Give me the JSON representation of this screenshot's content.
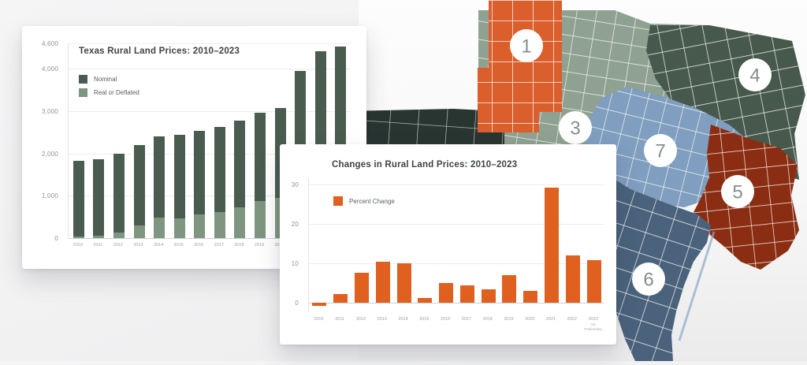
{
  "chart_data": [
    {
      "type": "bar",
      "title": "Texas Rural Land Prices: 2010–2023",
      "categories": [
        "2010",
        "2011",
        "2012",
        "2013",
        "2014",
        "2015",
        "2016",
        "2017",
        "2018",
        "2019",
        "2020",
        "2021",
        "2022",
        "2023"
      ],
      "series": [
        {
          "name": "Nominal",
          "color": "#4A5C50",
          "values": [
            1820,
            1870,
            2000,
            2200,
            2400,
            2440,
            2530,
            2630,
            2780,
            2960,
            3070,
            3950,
            4420,
            4530
          ]
        },
        {
          "name": "Real or Deflated",
          "color": "#7E957F",
          "values": [
            40,
            60,
            130,
            300,
            480,
            470,
            550,
            620,
            730,
            880,
            950,
            null,
            null,
            null
          ]
        }
      ],
      "ylim": [
        0,
        4600
      ],
      "yticks": [
        0,
        1000,
        2000,
        3000,
        4000,
        4600
      ],
      "ytick_labels": [
        "0",
        "1,000",
        "2,000",
        "3,000",
        "4,000",
        "4,600"
      ],
      "grid": true,
      "legend_position": "top-left",
      "note": "Real or Deflated bars for 2021–2023 are occluded by the overlapping card"
    },
    {
      "type": "bar",
      "title": "Changes in Rural Land Prices: 2010–2023",
      "categories": [
        "2010",
        "2011",
        "2012",
        "2013",
        "2014",
        "2015",
        "2016",
        "2017",
        "2018",
        "2019",
        "2020",
        "2021",
        "2022",
        "2023"
      ],
      "category_sublines": {
        "2023": "1st Preliminary"
      },
      "series": [
        {
          "name": "Percent Change",
          "color": "#E0601F",
          "values": [
            -0.8,
            2.1,
            7.5,
            10.4,
            10.0,
            1.1,
            4.9,
            4.4,
            3.3,
            7.0,
            3.0,
            29.2,
            12.0,
            10.8
          ]
        }
      ],
      "ylim": [
        -2.5,
        31.5
      ],
      "yticks": [
        0,
        10,
        20,
        30
      ],
      "ytick_labels": [
        "0",
        "10",
        "20",
        "30"
      ],
      "grid": true,
      "legend_position": "top-left"
    }
  ],
  "map": {
    "description": "Texas county map divided into numbered land market regions",
    "markers": [
      {
        "number": "1"
      },
      {
        "number": "3"
      },
      {
        "number": "4"
      },
      {
        "number": "5"
      },
      {
        "number": "6"
      },
      {
        "number": "7"
      }
    ],
    "region_colors": {
      "region1": "#DB5F2D",
      "region2": "#283531",
      "region3": "#8FA191",
      "region4": "#47594D",
      "region5": "#8A2D12",
      "region6": "#4A627C",
      "region7": "#7F9EC0",
      "county_line": "#F5F3EF",
      "marker_fill": "#FFFFFF",
      "marker_number": "#848E8A"
    }
  }
}
